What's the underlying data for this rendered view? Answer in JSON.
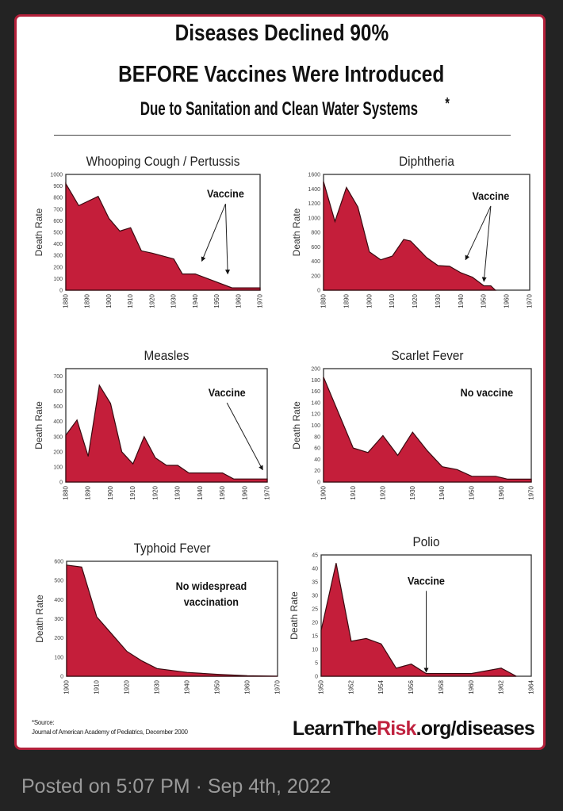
{
  "title": {
    "line1": "Diseases Declined 90%",
    "line2": "BEFORE Vaccines Were Introduced",
    "line3": "Due to Sanitation and Clean Water Systems",
    "asterisk": "*"
  },
  "colors": {
    "fill": "#c41e3a",
    "border": "#b3203a",
    "background": "#232323"
  },
  "source": {
    "label": "*Source:",
    "text": "Journal of American Academy of Pediatrics, December 2000"
  },
  "brand": {
    "part1": "LearnThe",
    "part2": "Risk",
    "part3": ".org/diseases"
  },
  "post": {
    "posted": "Posted on 5:07 PM · Sep 4th, 2022"
  },
  "chart_data": [
    {
      "type": "area",
      "title": "Whooping Cough / Pertussis",
      "ylabel": "Death Rate",
      "xlim": [
        1880,
        1970
      ],
      "ylim": [
        0,
        1000
      ],
      "xticks": [
        1880,
        1890,
        1900,
        1910,
        1920,
        1930,
        1940,
        1950,
        1960,
        1970
      ],
      "yticks": [
        0,
        100,
        200,
        300,
        400,
        500,
        600,
        700,
        800,
        900,
        1000
      ],
      "points": [
        [
          1880,
          920
        ],
        [
          1886,
          730
        ],
        [
          1895,
          810
        ],
        [
          1900,
          620
        ],
        [
          1905,
          510
        ],
        [
          1910,
          540
        ],
        [
          1915,
          340
        ],
        [
          1920,
          320
        ],
        [
          1930,
          270
        ],
        [
          1934,
          140
        ],
        [
          1940,
          140
        ],
        [
          1957,
          20
        ],
        [
          1970,
          20
        ]
      ],
      "annotation": {
        "text": [
          "Vaccine"
        ],
        "at": [
          1954,
          800
        ],
        "arrows": [
          [
            1943,
            250
          ],
          [
            1955,
            140
          ]
        ]
      }
    },
    {
      "type": "area",
      "title": "Diphtheria",
      "ylabel": "Death Rate",
      "xlim": [
        1880,
        1970
      ],
      "ylim": [
        0,
        1600
      ],
      "xticks": [
        1880,
        1890,
        1900,
        1910,
        1920,
        1930,
        1940,
        1950,
        1960,
        1970
      ],
      "yticks": [
        0,
        200,
        400,
        600,
        800,
        1000,
        1200,
        1400,
        1600
      ],
      "points": [
        [
          1880,
          1500
        ],
        [
          1885,
          950
        ],
        [
          1890,
          1420
        ],
        [
          1895,
          1150
        ],
        [
          1900,
          530
        ],
        [
          1905,
          420
        ],
        [
          1910,
          470
        ],
        [
          1915,
          700
        ],
        [
          1918,
          680
        ],
        [
          1925,
          450
        ],
        [
          1930,
          340
        ],
        [
          1935,
          330
        ],
        [
          1940,
          240
        ],
        [
          1945,
          180
        ],
        [
          1950,
          60
        ],
        [
          1953,
          60
        ],
        [
          1955,
          0
        ]
      ],
      "annotation": {
        "text": [
          "Vaccine"
        ],
        "at": [
          1953,
          1250
        ],
        "arrows": [
          [
            1942,
            420
          ],
          [
            1950,
            120
          ]
        ]
      }
    },
    {
      "type": "area",
      "title": "Measles",
      "ylabel": "Death Rate",
      "xlim": [
        1880,
        1970
      ],
      "ylim": [
        0,
        750
      ],
      "xticks": [
        1880,
        1890,
        1900,
        1910,
        1920,
        1930,
        1940,
        1950,
        1960,
        1970
      ],
      "yticks": [
        0,
        100,
        200,
        300,
        400,
        500,
        600,
        700
      ],
      "points": [
        [
          1880,
          310
        ],
        [
          1885,
          410
        ],
        [
          1890,
          170
        ],
        [
          1895,
          640
        ],
        [
          1900,
          520
        ],
        [
          1905,
          200
        ],
        [
          1910,
          120
        ],
        [
          1915,
          300
        ],
        [
          1920,
          160
        ],
        [
          1925,
          110
        ],
        [
          1930,
          110
        ],
        [
          1935,
          60
        ],
        [
          1950,
          60
        ],
        [
          1955,
          20
        ],
        [
          1970,
          20
        ]
      ],
      "annotation": {
        "text": [
          "Vaccine"
        ],
        "at": [
          1952,
          566
        ],
        "arrows": [
          [
            1968,
            80
          ]
        ]
      }
    },
    {
      "type": "area",
      "title": "Scarlet Fever",
      "ylabel": "Death Rate",
      "xlim": [
        1900,
        1970
      ],
      "ylim": [
        0,
        200
      ],
      "xticks": [
        1900,
        1910,
        1920,
        1930,
        1940,
        1950,
        1960,
        1970
      ],
      "yticks": [
        0,
        20,
        40,
        60,
        80,
        100,
        120,
        140,
        160,
        180,
        200
      ],
      "points": [
        [
          1900,
          185
        ],
        [
          1910,
          60
        ],
        [
          1915,
          52
        ],
        [
          1920,
          82
        ],
        [
          1925,
          47
        ],
        [
          1930,
          88
        ],
        [
          1935,
          55
        ],
        [
          1940,
          27
        ],
        [
          1945,
          22
        ],
        [
          1950,
          10
        ],
        [
          1958,
          10
        ],
        [
          1962,
          5
        ],
        [
          1970,
          5
        ]
      ],
      "annotation": {
        "text": [
          "No vaccine"
        ],
        "at": [
          1955,
          151
        ],
        "arrows": []
      }
    },
    {
      "type": "area",
      "title": "Typhoid Fever",
      "ylabel": "Death Rate",
      "xlim": [
        1900,
        1970
      ],
      "ylim": [
        0,
        600
      ],
      "xticks": [
        1900,
        1910,
        1920,
        1930,
        1940,
        1950,
        1960,
        1970
      ],
      "yticks": [
        0,
        100,
        200,
        300,
        400,
        500,
        600
      ],
      "points": [
        [
          1900,
          580
        ],
        [
          1905,
          570
        ],
        [
          1910,
          310
        ],
        [
          1915,
          220
        ],
        [
          1920,
          130
        ],
        [
          1925,
          80
        ],
        [
          1930,
          40
        ],
        [
          1940,
          20
        ],
        [
          1950,
          10
        ],
        [
          1960,
          3
        ],
        [
          1970,
          0
        ]
      ],
      "annotation": {
        "text": [
          "No widespread",
          "vaccination"
        ],
        "at": [
          1948,
          450
        ],
        "arrows": []
      }
    },
    {
      "type": "area",
      "title": "Polio",
      "ylabel": "Death Rate",
      "xlim": [
        1950,
        1964
      ],
      "ylim": [
        0,
        45
      ],
      "xticks": [
        1950,
        1952,
        1954,
        1956,
        1958,
        1960,
        1962,
        1964
      ],
      "yticks": [
        0,
        5,
        10,
        15,
        20,
        25,
        30,
        35,
        40,
        45
      ],
      "points": [
        [
          1950,
          17
        ],
        [
          1951,
          42
        ],
        [
          1952,
          13
        ],
        [
          1953,
          14
        ],
        [
          1954,
          12
        ],
        [
          1955,
          3
        ],
        [
          1956,
          4.5
        ],
        [
          1957,
          1
        ],
        [
          1960,
          1
        ],
        [
          1962,
          3
        ],
        [
          1963,
          0
        ]
      ],
      "annotation": {
        "text": [
          "Vaccine"
        ],
        "at": [
          1957,
          34
        ],
        "arrows": [
          [
            1957,
            1.5
          ]
        ]
      }
    }
  ]
}
